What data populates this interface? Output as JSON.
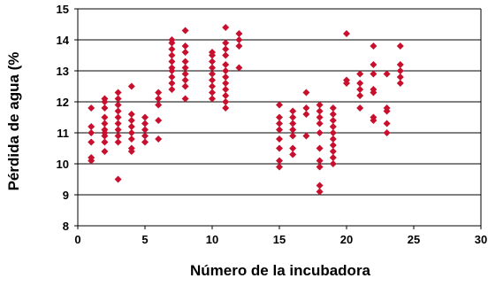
{
  "chart_data": {
    "type": "scatter",
    "title": "",
    "xlabel": "Número de la incubadora",
    "ylabel": "Pérdida de agua (%",
    "xlim": [
      0,
      30
    ],
    "ylim": [
      8,
      15
    ],
    "xticks": [
      0,
      5,
      10,
      15,
      20,
      25,
      30
    ],
    "yticks": [
      8,
      9,
      10,
      11,
      12,
      13,
      14,
      15
    ],
    "grid": "horizontal",
    "marker_color": "#C8102E",
    "marker": "diamond",
    "points": [
      [
        1,
        10.1
      ],
      [
        1,
        10.2
      ],
      [
        1,
        10.7
      ],
      [
        1,
        11.0
      ],
      [
        1,
        11.2
      ],
      [
        1,
        11.8
      ],
      [
        2,
        10.4
      ],
      [
        2,
        10.7
      ],
      [
        2,
        10.9
      ],
      [
        2,
        11.0
      ],
      [
        2,
        11.1
      ],
      [
        2,
        11.3
      ],
      [
        2,
        11.5
      ],
      [
        2,
        11.8
      ],
      [
        2,
        12.0
      ],
      [
        2,
        12.1
      ],
      [
        3,
        9.5
      ],
      [
        3,
        10.7
      ],
      [
        3,
        10.9
      ],
      [
        3,
        11.1
      ],
      [
        3,
        11.3
      ],
      [
        3,
        11.5
      ],
      [
        3,
        11.7
      ],
      [
        3,
        11.9
      ],
      [
        3,
        12.1
      ],
      [
        3,
        12.3
      ],
      [
        4,
        10.4
      ],
      [
        4,
        10.5
      ],
      [
        4,
        10.8
      ],
      [
        4,
        11.0
      ],
      [
        4,
        11.2
      ],
      [
        4,
        11.4
      ],
      [
        4,
        11.6
      ],
      [
        4,
        12.5
      ],
      [
        5,
        10.7
      ],
      [
        5,
        10.9
      ],
      [
        5,
        11.1
      ],
      [
        5,
        11.3
      ],
      [
        5,
        11.5
      ],
      [
        6,
        10.8
      ],
      [
        6,
        11.4
      ],
      [
        6,
        11.9
      ],
      [
        6,
        12.1
      ],
      [
        6,
        12.3
      ],
      [
        7,
        12.4
      ],
      [
        7,
        12.6
      ],
      [
        7,
        12.8
      ],
      [
        7,
        13.0
      ],
      [
        7,
        13.1
      ],
      [
        7,
        13.3
      ],
      [
        7,
        13.5
      ],
      [
        7,
        13.7
      ],
      [
        7,
        13.9
      ],
      [
        7,
        14.0
      ],
      [
        8,
        12.1
      ],
      [
        8,
        12.5
      ],
      [
        8,
        12.7
      ],
      [
        8,
        12.9
      ],
      [
        8,
        13.1
      ],
      [
        8,
        13.3
      ],
      [
        8,
        13.6
      ],
      [
        8,
        13.8
      ],
      [
        8,
        14.3
      ],
      [
        10,
        12.1
      ],
      [
        10,
        12.3
      ],
      [
        10,
        12.5
      ],
      [
        10,
        12.7
      ],
      [
        10,
        12.9
      ],
      [
        10,
        13.1
      ],
      [
        10,
        13.3
      ],
      [
        10,
        13.5
      ],
      [
        10,
        13.6
      ],
      [
        11,
        11.8
      ],
      [
        11,
        12.0
      ],
      [
        11,
        12.2
      ],
      [
        11,
        12.4
      ],
      [
        11,
        12.6
      ],
      [
        11,
        12.8
      ],
      [
        11,
        13.0
      ],
      [
        11,
        13.2
      ],
      [
        11,
        13.5
      ],
      [
        11,
        13.7
      ],
      [
        11,
        13.9
      ],
      [
        11,
        14.4
      ],
      [
        12,
        13.1
      ],
      [
        12,
        13.8
      ],
      [
        12,
        14.0
      ],
      [
        12,
        14.2
      ],
      [
        15,
        9.9
      ],
      [
        15,
        10.1
      ],
      [
        15,
        10.5
      ],
      [
        15,
        10.8
      ],
      [
        15,
        11.1
      ],
      [
        15,
        11.3
      ],
      [
        15,
        11.5
      ],
      [
        15,
        11.9
      ],
      [
        16,
        10.3
      ],
      [
        16,
        10.5
      ],
      [
        16,
        10.9
      ],
      [
        16,
        11.1
      ],
      [
        16,
        11.3
      ],
      [
        16,
        11.5
      ],
      [
        16,
        11.7
      ],
      [
        17,
        10.9
      ],
      [
        17,
        11.6
      ],
      [
        17,
        11.8
      ],
      [
        17,
        12.3
      ],
      [
        18,
        9.1
      ],
      [
        18,
        9.3
      ],
      [
        18,
        9.9
      ],
      [
        18,
        10.1
      ],
      [
        18,
        10.5
      ],
      [
        18,
        11.0
      ],
      [
        18,
        11.3
      ],
      [
        18,
        11.5
      ],
      [
        18,
        11.7
      ],
      [
        18,
        11.9
      ],
      [
        19,
        10.0
      ],
      [
        19,
        10.2
      ],
      [
        19,
        10.4
      ],
      [
        19,
        10.6
      ],
      [
        19,
        10.8
      ],
      [
        19,
        11.0
      ],
      [
        19,
        11.2
      ],
      [
        19,
        11.4
      ],
      [
        19,
        11.6
      ],
      [
        19,
        11.8
      ],
      [
        20,
        12.6
      ],
      [
        20,
        12.7
      ],
      [
        20,
        14.2
      ],
      [
        21,
        11.8
      ],
      [
        21,
        12.2
      ],
      [
        21,
        12.4
      ],
      [
        21,
        12.6
      ],
      [
        21,
        12.9
      ],
      [
        22,
        11.4
      ],
      [
        22,
        11.5
      ],
      [
        22,
        12.3
      ],
      [
        22,
        12.4
      ],
      [
        22,
        12.9
      ],
      [
        22,
        13.2
      ],
      [
        22,
        13.8
      ],
      [
        23,
        11.0
      ],
      [
        23,
        11.3
      ],
      [
        23,
        11.7
      ],
      [
        23,
        11.8
      ],
      [
        23,
        12.9
      ],
      [
        24,
        12.6
      ],
      [
        24,
        12.8
      ],
      [
        24,
        13.0
      ],
      [
        24,
        13.2
      ],
      [
        24,
        13.8
      ]
    ]
  }
}
